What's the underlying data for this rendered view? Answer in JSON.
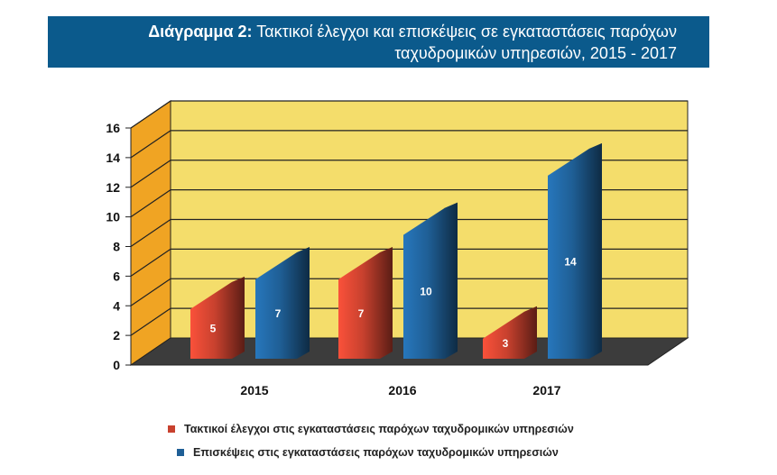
{
  "header": {
    "title_bold": "Διάγραμμα 2:",
    "title_line1": "Τακτικοί έλεγχοι και επισκέψεις σε εγκαταστάσεις παρόχων",
    "title_line2": "ταχυδρομικών υπηρεσιών, 2015 - 2017"
  },
  "chart_data": {
    "type": "bar",
    "categories": [
      "2015",
      "2016",
      "2017"
    ],
    "series": [
      {
        "name": "Τακτικοί έλεγχοι στις εγκαταστάσεις παρόχων ταχυδρομικών υπηρεσιών",
        "values": [
          5,
          7,
          3
        ],
        "color": "#c8412e"
      },
      {
        "name": "Επισκέψεις στις εγκαταστάσεις παρόχων ταχυδρομικών υπηρεσιών",
        "values": [
          7,
          10,
          14
        ],
        "color": "#1f5f96"
      }
    ],
    "yticks": [
      "0",
      "2",
      "4",
      "6",
      "8",
      "10",
      "12",
      "14",
      "16"
    ],
    "ylim": [
      0,
      16
    ],
    "grid": true,
    "legend_position": "bottom",
    "colors": {
      "wall": "#f4dd6b",
      "side_wall": "#f0a423",
      "floor": "#3c3c3c"
    }
  }
}
